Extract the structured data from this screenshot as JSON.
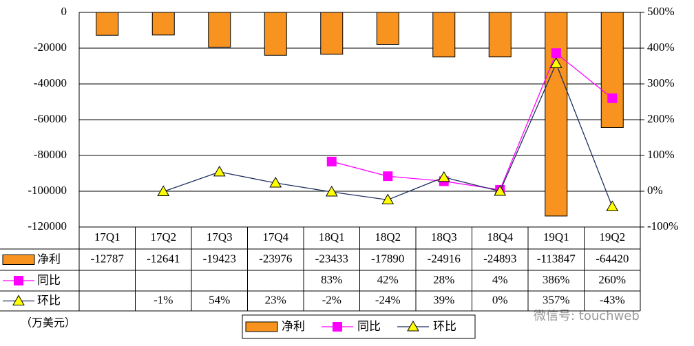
{
  "chart_data": {
    "type": "bar-line",
    "categories": [
      "17Q1",
      "17Q2",
      "17Q3",
      "17Q4",
      "18Q1",
      "18Q2",
      "18Q3",
      "18Q4",
      "19Q1",
      "19Q2"
    ],
    "series": [
      {
        "name": "净利",
        "type": "bar",
        "color": "#f7931e",
        "values": [
          -12787,
          -12641,
          -19423,
          -23976,
          -23433,
          -17890,
          -24916,
          -24893,
          -113847,
          -64420
        ]
      },
      {
        "name": "同比",
        "type": "line",
        "axis": "y2",
        "marker": "square",
        "color": "#ff00ff",
        "values": [
          null,
          null,
          null,
          null,
          83,
          42,
          28,
          4,
          386,
          260
        ],
        "value_labels": [
          null,
          null,
          null,
          null,
          "83%",
          "42%",
          "28%",
          "4%",
          "386%",
          "260%"
        ]
      },
      {
        "name": "环比",
        "type": "line",
        "axis": "y2",
        "marker": "triangle",
        "color": "#1f2f5f",
        "marker_color": "#ffff00",
        "values": [
          null,
          -1,
          54,
          23,
          -2,
          -24,
          39,
          0,
          357,
          -43
        ],
        "value_labels": [
          null,
          "-1%",
          "54%",
          "23%",
          "-2%",
          "-24%",
          "39%",
          "0%",
          "357%",
          "-43%"
        ]
      }
    ],
    "ylim": [
      -120000,
      0
    ],
    "yticks": [
      0,
      -20000,
      -40000,
      -60000,
      -80000,
      -100000,
      -120000
    ],
    "y2lim": [
      -100,
      500
    ],
    "y2ticks": [
      {
        "value": 500,
        "label": "500%"
      },
      {
        "value": 400,
        "label": "400%"
      },
      {
        "value": 300,
        "label": "300%"
      },
      {
        "value": 200,
        "label": "200%"
      },
      {
        "value": 100,
        "label": "100%"
      },
      {
        "value": 0,
        "label": "0%"
      },
      {
        "value": -100,
        "label": "-100%"
      }
    ],
    "grid": true,
    "unit_label": "（万美元）",
    "watermark": "微信号: touchweb"
  }
}
